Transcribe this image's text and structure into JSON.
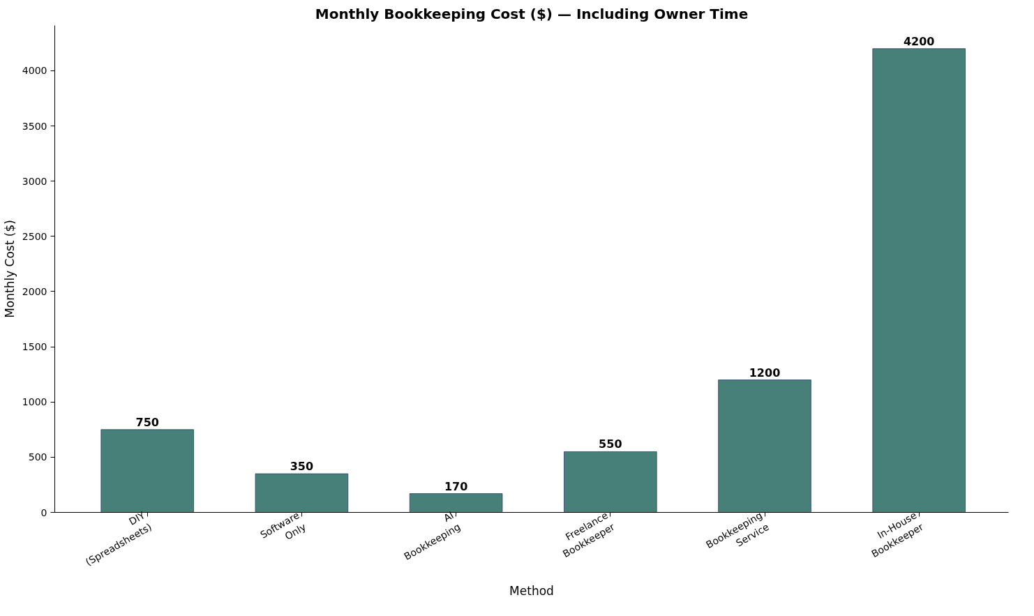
{
  "chart_data": {
    "type": "bar",
    "title": "Monthly Bookkeeping Cost ($) — Including Owner Time",
    "xlabel": "Method",
    "ylabel": "Monthly Cost ($)",
    "categories": [
      "DIY\n(Spreadsheets)",
      "Software\nOnly",
      "AI\nBookkeeping",
      "Freelance\nBookkeeper",
      "Bookkeeping\nService",
      "In-House\nBookkeeper"
    ],
    "values": [
      750,
      350,
      170,
      550,
      1200,
      4200
    ],
    "color": "#468078",
    "ylim": [
      0,
      4410
    ],
    "yticks": [
      0,
      500,
      1000,
      1500,
      2000,
      2500,
      3000,
      3500,
      4000
    ],
    "grid": false,
    "data_labels": true
  }
}
